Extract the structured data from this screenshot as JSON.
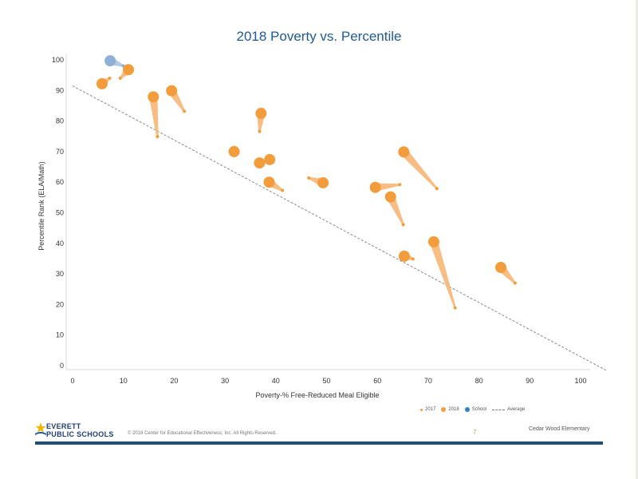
{
  "chart_data": {
    "type": "scatter",
    "title": "2018 Poverty vs. Percentile",
    "xlabel": "Poverty-% Free-Reduced Meal Eligible",
    "ylabel": "Percentile Rank (ELA/Math)",
    "xlim": [
      0,
      105
    ],
    "ylim": [
      0,
      100
    ],
    "x_ticks": [
      0,
      10,
      20,
      30,
      40,
      50,
      60,
      70,
      80,
      90,
      100
    ],
    "y_ticks": [
      0,
      10,
      20,
      30,
      40,
      50,
      60,
      70,
      80,
      90,
      100
    ],
    "grid": false,
    "legend_position": "bottom-right",
    "series": [
      {
        "name": "2017",
        "color": "#f39c3c"
      },
      {
        "name": "2018",
        "color": "#f39c3c"
      },
      {
        "name": "School",
        "color": "#8fb0d6"
      },
      {
        "name": "Average",
        "color": "#777777"
      }
    ],
    "points": [
      {
        "x2017": 10,
        "y2017": 98,
        "x2018": 7.4,
        "y2018": 99.7,
        "school": true
      },
      {
        "x2017": 7.3,
        "y2017": 94,
        "x2018": 5.8,
        "y2018": 92.2,
        "school": false
      },
      {
        "x2017": 9.4,
        "y2017": 94,
        "x2018": 11,
        "y2018": 96.8,
        "school": false
      },
      {
        "x2017": 16.7,
        "y2017": 74.9,
        "x2018": 15.9,
        "y2018": 87.9,
        "school": false
      },
      {
        "x2017": 22,
        "y2017": 83.2,
        "x2018": 19.5,
        "y2018": 89.9,
        "school": false
      },
      {
        "x2017": 36.8,
        "y2017": 76.6,
        "x2018": 37.1,
        "y2018": 82.5,
        "school": false
      },
      {
        "x2017": 31.8,
        "y2017": 70,
        "x2018": 31.8,
        "y2018": 70,
        "school": false
      },
      {
        "x2017": 36.8,
        "y2017": 66.3,
        "x2018": 36.8,
        "y2018": 66.3,
        "school": false
      },
      {
        "x2017": 38.8,
        "y2017": 67.4,
        "x2018": 38.8,
        "y2018": 67.4,
        "school": false
      },
      {
        "x2017": 41.3,
        "y2017": 57.3,
        "x2018": 38.7,
        "y2018": 60,
        "school": false
      },
      {
        "x2017": 46.5,
        "y2017": 61.4,
        "x2018": 49.3,
        "y2018": 59.8,
        "school": false
      },
      {
        "x2017": 64.4,
        "y2017": 59.2,
        "x2018": 59.6,
        "y2018": 58.3,
        "school": false
      },
      {
        "x2017": 65.1,
        "y2017": 46.1,
        "x2018": 62.6,
        "y2018": 55.2,
        "school": false
      },
      {
        "x2017": 71.7,
        "y2017": 57.9,
        "x2018": 65.2,
        "y2018": 69.9,
        "school": false
      },
      {
        "x2017": 67,
        "y2017": 34.9,
        "x2018": 65.3,
        "y2018": 35.8,
        "school": false
      },
      {
        "x2017": 75.3,
        "y2017": 18.9,
        "x2018": 71.1,
        "y2018": 40.5,
        "school": false
      },
      {
        "x2017": 87.1,
        "y2017": 27,
        "x2018": 84.3,
        "y2018": 32.1,
        "school": false
      }
    ],
    "average_line": {
      "x": [
        0,
        105
      ],
      "y": [
        91.5,
        -1.5
      ]
    }
  },
  "legend": {
    "item_2017": "2017",
    "item_2018": "2018",
    "item_school": "School",
    "item_average": "Average"
  },
  "footer": {
    "logo_line1": "EVERETT",
    "logo_line2": "PUBLIC SCHOOLS",
    "copyright": "© 2018 Center for Educational Effectiveness, Inc. All Rights Reserved.",
    "page_number": "7",
    "school_name": "Cedar Wood Elementary"
  }
}
